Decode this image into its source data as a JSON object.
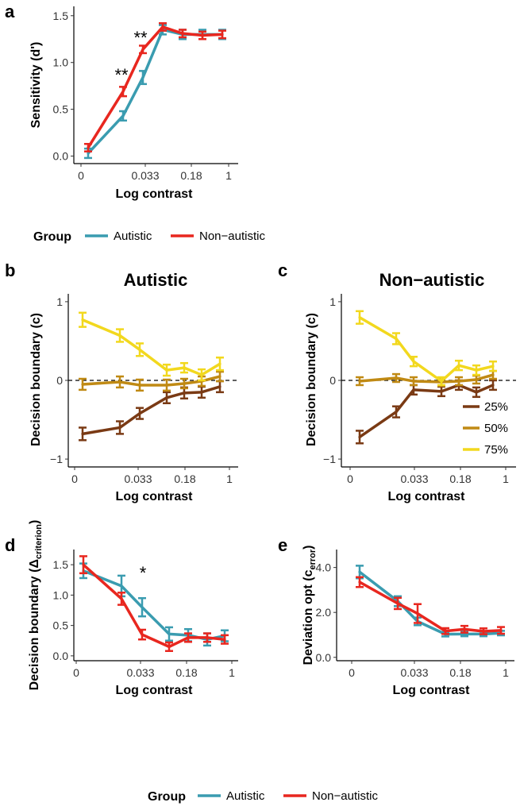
{
  "colors": {
    "autistic": "#3a9cb0",
    "non_autistic": "#e8271f",
    "c25": "#7a3a14",
    "c50": "#c08a14",
    "c75": "#f2d81e",
    "axis": "#000000"
  },
  "legend_group": {
    "title": "Group",
    "items": [
      "Autistic",
      "Non−autistic"
    ]
  },
  "legend_bottom": {
    "title": "Group",
    "items": [
      "Autistic",
      "Non−autistic"
    ]
  },
  "chart_data": [
    {
      "id": "a",
      "panel_label": "a",
      "type": "line",
      "title": "",
      "xlabel": "Log contrast",
      "ylabel": "Sensitivity (d')",
      "x_ticks": [
        "0",
        "0.033",
        "0.18",
        "1"
      ],
      "y_ticks": [
        "0.0",
        "0.5",
        "1.0",
        "1.5"
      ],
      "ylim": [
        -0.08,
        1.6
      ],
      "annotations": [
        "**",
        "**"
      ],
      "series": [
        {
          "name": "Autistic",
          "color_key": "autistic",
          "values": [
            0.03,
            0.43,
            0.84,
            1.35,
            1.3,
            1.3,
            1.3
          ],
          "errors": [
            0.05,
            0.05,
            0.07,
            0.05,
            0.05,
            0.05,
            0.05
          ]
        },
        {
          "name": "Non-autistic",
          "color_key": "non_autistic",
          "values": [
            0.09,
            0.69,
            1.14,
            1.38,
            1.31,
            1.29,
            1.3
          ],
          "errors": [
            0.04,
            0.05,
            0.04,
            0.04,
            0.04,
            0.04,
            0.04
          ]
        }
      ]
    },
    {
      "id": "b",
      "panel_label": "b",
      "type": "line",
      "title": "Autistic",
      "xlabel": "Log contrast",
      "ylabel": "Decision boundary (c)",
      "x_ticks": [
        "0",
        "0.033",
        "0.18",
        "1"
      ],
      "y_ticks": [
        "−1",
        "0",
        "1"
      ],
      "ylim": [
        -1.1,
        1.1
      ],
      "reference_line": 0,
      "series": [
        {
          "name": "25%",
          "color_key": "c25",
          "values": [
            -0.68,
            -0.6,
            -0.42,
            -0.22,
            -0.16,
            -0.15,
            -0.08
          ],
          "errors": [
            0.08,
            0.08,
            0.07,
            0.07,
            0.07,
            0.07,
            0.07
          ]
        },
        {
          "name": "50%",
          "color_key": "c50",
          "values": [
            -0.05,
            -0.02,
            -0.06,
            -0.06,
            -0.04,
            -0.01,
            0.05
          ],
          "errors": [
            0.07,
            0.07,
            0.07,
            0.07,
            0.06,
            0.06,
            0.06
          ]
        },
        {
          "name": "75%",
          "color_key": "c75",
          "values": [
            0.77,
            0.57,
            0.39,
            0.13,
            0.16,
            0.07,
            0.21
          ],
          "errors": [
            0.09,
            0.08,
            0.08,
            0.07,
            0.06,
            0.07,
            0.08
          ]
        }
      ]
    },
    {
      "id": "c",
      "panel_label": "c",
      "type": "line",
      "title": "Non−autistic",
      "xlabel": "Log contrast",
      "ylabel": "Decision boundary (c)",
      "x_ticks": [
        "0",
        "0.033",
        "0.18",
        "1"
      ],
      "y_ticks": [
        "−1",
        "0",
        "1"
      ],
      "ylim": [
        -1.1,
        1.1
      ],
      "reference_line": 0,
      "legend": [
        "25%",
        "50%",
        "75%"
      ],
      "series": [
        {
          "name": "25%",
          "color_key": "c25",
          "values": [
            -0.72,
            -0.4,
            -0.12,
            -0.14,
            -0.06,
            -0.15,
            -0.06
          ],
          "errors": [
            0.08,
            0.07,
            0.06,
            0.06,
            0.06,
            0.06,
            0.06
          ]
        },
        {
          "name": "50%",
          "color_key": "c50",
          "values": [
            -0.01,
            0.03,
            -0.01,
            -0.02,
            -0.01,
            0.01,
            0.07
          ],
          "errors": [
            0.05,
            0.05,
            0.05,
            0.05,
            0.05,
            0.05,
            0.05
          ]
        },
        {
          "name": "75%",
          "color_key": "c75",
          "values": [
            0.8,
            0.53,
            0.24,
            -0.01,
            0.19,
            0.13,
            0.18
          ],
          "errors": [
            0.08,
            0.07,
            0.06,
            0.05,
            0.06,
            0.06,
            0.06
          ]
        }
      ]
    },
    {
      "id": "d",
      "panel_label": "d",
      "type": "line",
      "title": "",
      "xlabel": "Log contrast",
      "ylabel_main": "Decision boundary (",
      "ylabel_delta": "Δ",
      "ylabel_sub": "criterion",
      "ylabel_close": ")",
      "x_ticks": [
        "0",
        "0.033",
        "0.18",
        "1"
      ],
      "y_ticks": [
        "0.0",
        "0.5",
        "1.0",
        "1.5"
      ],
      "ylim": [
        -0.08,
        1.75
      ],
      "annotations": [
        "*"
      ],
      "series": [
        {
          "name": "Autistic",
          "color_key": "autistic",
          "values": [
            1.4,
            1.15,
            0.8,
            0.36,
            0.34,
            0.27,
            0.33
          ],
          "errors": [
            0.12,
            0.17,
            0.15,
            0.11,
            0.1,
            0.1,
            0.09
          ]
        },
        {
          "name": "Non-autistic",
          "color_key": "non_autistic",
          "values": [
            1.5,
            0.94,
            0.35,
            0.15,
            0.3,
            0.3,
            0.27
          ],
          "errors": [
            0.14,
            0.1,
            0.08,
            0.07,
            0.07,
            0.07,
            0.07
          ]
        }
      ]
    },
    {
      "id": "e",
      "panel_label": "e",
      "type": "line",
      "title": "",
      "xlabel": "Log contrast",
      "ylabel_main": "Deviation opt (c",
      "ylabel_sub": "error",
      "ylabel_close": ")",
      "x_ticks": [
        "0",
        "0.033",
        "0.18",
        "1"
      ],
      "y_ticks": [
        "0.0",
        "2.0",
        "4.0"
      ],
      "ylim": [
        -0.15,
        4.8
      ],
      "series": [
        {
          "name": "Autistic",
          "color_key": "autistic",
          "values": [
            3.8,
            2.5,
            1.6,
            1.03,
            1.04,
            1.04,
            1.08
          ],
          "errors": [
            0.28,
            0.22,
            0.17,
            0.1,
            0.1,
            0.1,
            0.1
          ]
        },
        {
          "name": "Non-autistic",
          "color_key": "non_autistic",
          "values": [
            3.35,
            2.4,
            1.95,
            1.17,
            1.25,
            1.16,
            1.2
          ],
          "errors": [
            0.22,
            0.25,
            0.42,
            0.13,
            0.15,
            0.13,
            0.15
          ]
        }
      ]
    }
  ]
}
